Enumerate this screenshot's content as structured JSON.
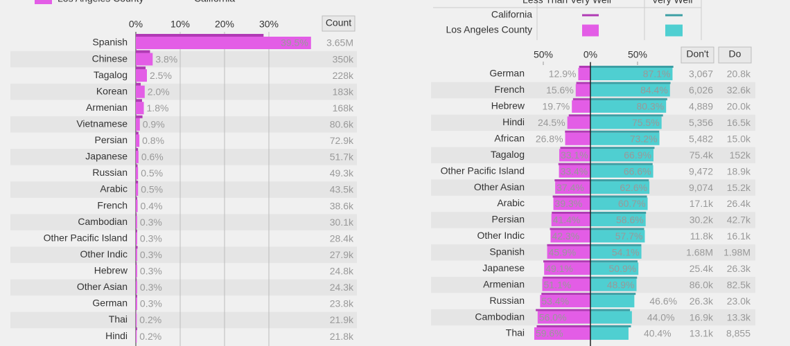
{
  "chart_data": [
    {
      "type": "hbar",
      "categories": [
        "Spanish",
        "Chinese",
        "Tagalog",
        "Korean",
        "Armenian",
        "Vietnamese",
        "Persian",
        "Japanese",
        "Russian",
        "Arabic",
        "French",
        "Cambodian",
        "Other Pacific Island",
        "Other Indic",
        "Hebrew",
        "Other Asian",
        "German",
        "Thai",
        "Hindi"
      ],
      "series": [
        {
          "name": "Los Angeles County",
          "color": "#e35de6",
          "values": [
            39.5,
            3.8,
            2.5,
            2.0,
            1.8,
            0.9,
            0.8,
            0.6,
            0.5,
            0.5,
            0.4,
            0.3,
            0.3,
            0.3,
            0.3,
            0.3,
            0.3,
            0.2,
            0.2
          ],
          "value_labels": [
            "39.5%",
            "3.8%",
            "2.5%",
            "2.0%",
            "1.8%",
            "0.9%",
            "0.8%",
            "0.6%",
            "0.5%",
            "0.5%",
            "0.4%",
            "0.3%",
            "0.3%",
            "0.3%",
            "0.3%",
            "0.3%",
            "0.3%",
            "0.2%",
            "0.2%"
          ]
        },
        {
          "name": "California",
          "color": "#b03ab4",
          "values": [
            28.8,
            3.2,
            2.2,
            1.1,
            1.4,
            1.5,
            0.6,
            0.5,
            0.4,
            0.5,
            0.3,
            0.2,
            0.3,
            0.4,
            0.2,
            0.2,
            0.3,
            0.1,
            0.3
          ]
        }
      ],
      "xlim": [
        0,
        41.5
      ],
      "xticks": [
        {
          "value": 0,
          "label": "0%"
        },
        {
          "value": 10,
          "label": "10%"
        },
        {
          "value": 20,
          "label": "20%"
        },
        {
          "value": 30,
          "label": "30%"
        }
      ],
      "grid": true,
      "count_header": "Count",
      "counts": [
        "3.65M",
        "350k",
        "228k",
        "183k",
        "168k",
        "80.6k",
        "72.9k",
        "51.7k",
        "49.3k",
        "43.5k",
        "38.6k",
        "30.1k",
        "28.4k",
        "27.9k",
        "24.8k",
        "24.3k",
        "23.8k",
        "21.9k",
        "21.8k"
      ]
    },
    {
      "type": "diverging",
      "groups": [
        "Less Than Very Well",
        "Very Well"
      ],
      "categories": [
        "German",
        "French",
        "Hebrew",
        "Hindi",
        "African",
        "Tagalog",
        "Other Pacific Island",
        "Other Asian",
        "Arabic",
        "Persian",
        "Other Indic",
        "Spanish",
        "Japanese",
        "Armenian",
        "Russian",
        "Cambodian",
        "Thai"
      ],
      "series": [
        {
          "name": "California",
          "colors": [
            "#b03ab4",
            "#3c9fa4"
          ],
          "less": [
            12,
            15,
            18.5,
            23,
            27,
            32,
            34,
            38,
            40,
            41,
            43,
            46,
            50,
            50.5,
            52,
            58,
            57
          ],
          "well": [
            88,
            85,
            81.5,
            77,
            73,
            68,
            66,
            62,
            60,
            59,
            57,
            54,
            50,
            49.5,
            48,
            42,
            43
          ]
        },
        {
          "name": "Los Angeles County",
          "colors": [
            "#e35de6",
            "#4fcfd1"
          ],
          "less": [
            12.9,
            15.6,
            19.7,
            24.5,
            26.8,
            33.1,
            33.4,
            37.4,
            39.3,
            41.4,
            42.3,
            45.9,
            49.1,
            51.1,
            53.4,
            56.0,
            59.6
          ],
          "less_labels": [
            "12.9%",
            "15.6%",
            "19.7%",
            "24.5%",
            "26.8%",
            "33.1%",
            "33.4%",
            "37.4%",
            "39.3%",
            "41.4%",
            "42.3%",
            "45.9%",
            "49.1%",
            "51.1%",
            "53.4%",
            "56.0%",
            "59.6%"
          ],
          "well": [
            87.1,
            84.4,
            80.3,
            75.5,
            73.2,
            66.9,
            66.6,
            62.6,
            60.7,
            58.6,
            57.7,
            54.1,
            50.9,
            48.9,
            46.6,
            44.0,
            40.4
          ],
          "well_labels": [
            "87.1%",
            "84.4%",
            "80.3%",
            "75.5%",
            "73.2%",
            "66.9%",
            "66.6%",
            "62.6%",
            "60.7%",
            "58.6%",
            "57.7%",
            "54.1%",
            "50.9%",
            "48.9%",
            "46.6%",
            "44.0%",
            "40.4%"
          ]
        }
      ],
      "xlim": [
        -100,
        100
      ],
      "xticks": [
        {
          "value": -50,
          "label": "50%"
        },
        {
          "value": 0,
          "label": "0%"
        },
        {
          "value": 50,
          "label": "50%"
        }
      ],
      "columns": [
        {
          "header": "Don't",
          "values": [
            "3,067",
            "6,026",
            "4,889",
            "5,356",
            "5,482",
            "75.4k",
            "9,472",
            "9,074",
            "17.1k",
            "30.2k",
            "11.8k",
            "1.68M",
            "25.4k",
            "86.0k",
            "26.3k",
            "16.9k",
            "13.1k"
          ]
        },
        {
          "header": "Do",
          "values": [
            "20.8k",
            "32.6k",
            "20.0k",
            "16.5k",
            "15.0k",
            "152k",
            "18.9k",
            "15.2k",
            "26.4k",
            "42.7k",
            "16.1k",
            "1.98M",
            "26.3k",
            "82.5k",
            "23.0k",
            "13.3k",
            "8,855"
          ]
        }
      ]
    }
  ]
}
